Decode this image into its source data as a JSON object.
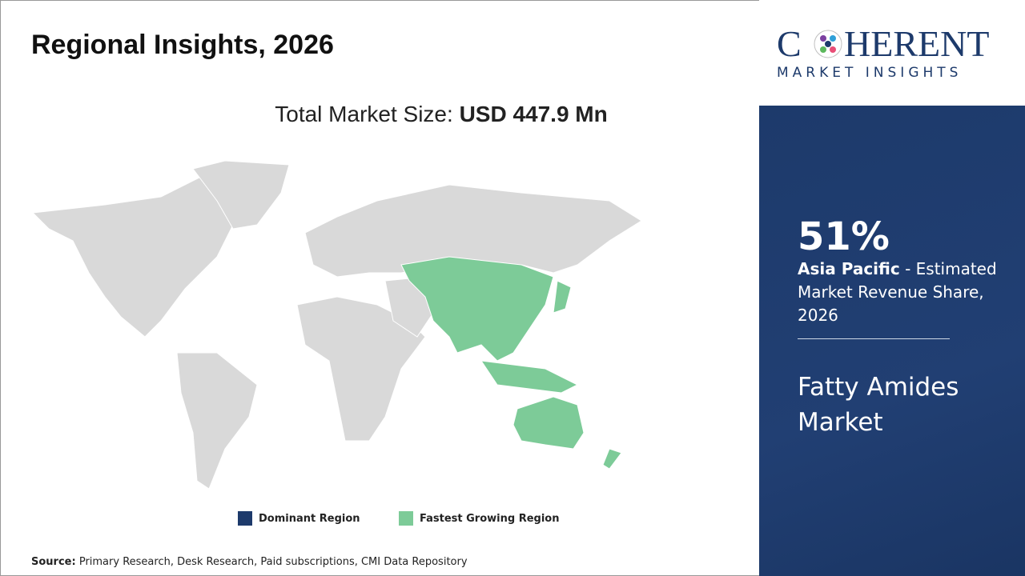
{
  "header": {
    "title": "Regional Insights, 2026"
  },
  "market_size": {
    "label": "Total Market Size:",
    "value": "USD 447.9 Mn"
  },
  "legend": [
    "Dominant Region",
    "Fastest Growing Region"
  ],
  "source": {
    "label": "Source:",
    "text": "Primary Research, Desk Research, Paid subscriptions, CMI Data Repository"
  },
  "logo": {
    "prefix": "C",
    "suffix": "HERENT",
    "tagline": "MARKET INSIGHTS"
  },
  "panel": {
    "share": "51%",
    "region": "Asia Pacific",
    "description": " - Estimated Market Revenue Share, 2026",
    "market_name": "Fatty Amides Market"
  }
}
